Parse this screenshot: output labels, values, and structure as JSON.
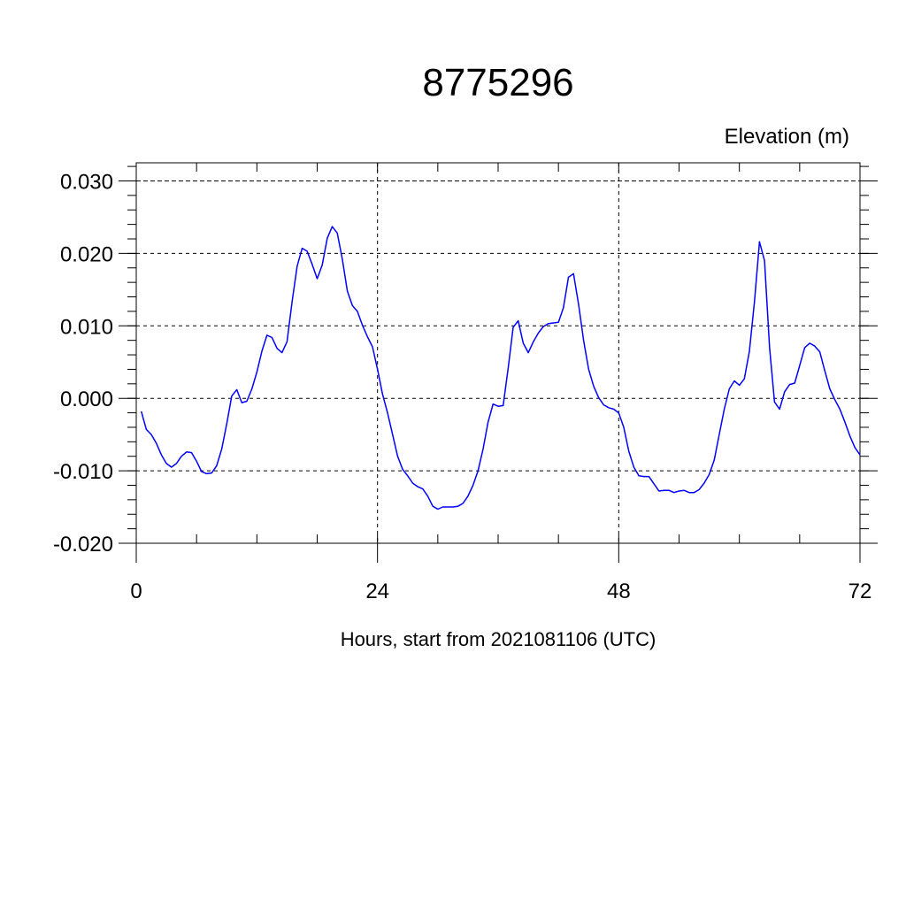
{
  "chart_data": {
    "type": "line",
    "title": "8775296",
    "ylabel": "Elevation (m)",
    "xlabel": "Hours, start from 2021081106 (UTC)",
    "xlim": [
      0,
      72
    ],
    "ylim": [
      -0.02,
      0.03
    ],
    "x_ticks": [
      0,
      24,
      48,
      72
    ],
    "x_tick_labels": [
      "0",
      "24",
      "48",
      "72"
    ],
    "y_ticks": [
      -0.02,
      -0.01,
      0.0,
      0.01,
      0.02,
      0.03
    ],
    "y_tick_labels": [
      "-0.020",
      "-0.010",
      "0.000",
      "0.010",
      "0.020",
      "0.030"
    ],
    "grid": true,
    "line_color": "#0000ff",
    "series": [
      {
        "x": [
          0.5,
          1.0,
          1.5,
          2.0,
          2.5,
          3.0,
          3.5,
          4.0,
          4.5,
          5.0,
          5.5,
          6.0,
          6.5,
          7.0,
          7.5,
          8.0,
          8.5,
          9.0,
          9.5,
          10.0,
          10.5,
          11.0,
          11.5,
          12.0,
          12.5,
          13.0,
          13.5,
          14.0,
          14.5,
          15.0,
          15.5,
          16.0,
          16.5,
          17.0,
          17.5,
          18.0,
          18.5,
          19.0,
          19.5,
          20.0,
          20.5,
          21.0,
          21.5,
          22.0,
          22.5,
          23.0,
          23.5,
          24.0,
          24.5,
          25.0,
          25.5,
          26.0,
          26.5,
          27.0,
          27.5,
          28.0,
          28.5,
          29.0,
          29.5,
          30.0,
          30.5,
          31.0,
          31.5,
          32.0,
          32.5,
          33.0,
          33.5,
          34.0,
          34.5,
          35.0,
          35.5,
          36.0,
          36.5,
          37.0,
          37.5,
          38.0,
          38.5,
          39.0,
          39.5,
          40.0,
          40.5,
          41.0,
          41.5,
          42.0,
          42.5,
          43.0,
          43.5,
          44.0,
          44.5,
          45.0,
          45.5,
          46.0,
          46.5,
          47.0,
          47.5,
          48.0,
          48.5,
          49.0,
          49.5,
          50.0,
          50.5,
          51.0,
          51.5,
          52.0,
          52.5,
          53.0,
          53.5,
          54.0,
          54.5,
          55.0,
          55.5,
          56.0,
          56.5,
          57.0,
          57.5,
          58.0,
          58.5,
          59.0,
          59.5,
          60.0,
          60.5,
          61.0,
          61.5,
          62.0,
          62.5,
          63.0,
          63.5,
          64.0,
          64.5,
          65.0,
          65.5,
          66.0,
          66.5,
          67.0,
          67.5,
          68.0,
          68.5,
          69.0,
          69.5,
          70.0,
          70.5,
          71.0,
          71.5,
          72.0
        ],
        "y": [
          -0.0018,
          -0.0043,
          -0.005,
          -0.0062,
          -0.0078,
          -0.009,
          -0.0095,
          -0.009,
          -0.008,
          -0.0074,
          -0.0075,
          -0.0087,
          -0.0101,
          -0.0104,
          -0.0103,
          -0.0093,
          -0.007,
          -0.0035,
          0.0003,
          0.0012,
          -0.0006,
          -0.0004,
          0.0013,
          0.0036,
          0.0065,
          0.0087,
          0.0084,
          0.0069,
          0.0063,
          0.0078,
          0.0133,
          0.0182,
          0.0207,
          0.0203,
          0.0185,
          0.0165,
          0.0184,
          0.0221,
          0.0237,
          0.0228,
          0.0192,
          0.0148,
          0.0128,
          0.012,
          0.0101,
          0.0085,
          0.0071,
          0.004,
          0.0006,
          -0.002,
          -0.005,
          -0.008,
          -0.0098,
          -0.0107,
          -0.0117,
          -0.0122,
          -0.0125,
          -0.0135,
          -0.0149,
          -0.0153,
          -0.015,
          -0.015,
          -0.015,
          -0.0149,
          -0.0145,
          -0.0135,
          -0.012,
          -0.01,
          -0.007,
          -0.0033,
          -0.0008,
          -0.0011,
          -0.001,
          0.0042,
          0.0098,
          0.0107,
          0.0076,
          0.0063,
          0.0078,
          0.009,
          0.0099,
          0.0103,
          0.0104,
          0.0105,
          0.0125,
          0.0167,
          0.0172,
          0.013,
          0.008,
          0.004,
          0.0017,
          0.0001,
          -0.0009,
          -0.0013,
          -0.0015,
          -0.002,
          -0.004,
          -0.0073,
          -0.0095,
          -0.0107,
          -0.0108,
          -0.0108,
          -0.0118,
          -0.0128,
          -0.0127,
          -0.0127,
          -0.013,
          -0.0128,
          -0.0127,
          -0.013,
          -0.013,
          -0.0126,
          -0.0117,
          -0.0105,
          -0.0085,
          -0.005,
          -0.0015,
          0.0013,
          0.0024,
          0.0018,
          0.0027,
          0.0065,
          0.0133,
          0.0216,
          0.019,
          0.007,
          -0.0005,
          -0.0015,
          0.0009,
          0.0019,
          0.0021,
          0.0045,
          0.007,
          0.0076,
          0.0072,
          0.0064,
          0.0038,
          0.0013,
          -0.0002,
          -0.0015,
          -0.0033,
          -0.0052,
          -0.0068,
          -0.0078
        ]
      }
    ]
  }
}
